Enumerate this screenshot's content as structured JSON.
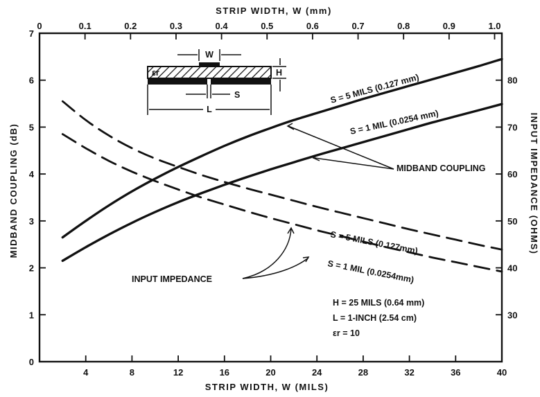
{
  "chart_data": {
    "type": "line",
    "x_bottom": {
      "label": "STRIP WIDTH, W (MILS)",
      "range": [
        0,
        40
      ],
      "ticks": [
        4,
        8,
        12,
        16,
        20,
        24,
        28,
        32,
        36,
        40
      ],
      "tick_labels": [
        "4",
        "8",
        "12",
        "16",
        "20",
        "24",
        "28",
        "32",
        "36",
        "40"
      ]
    },
    "x_top": {
      "label": "STRIP WIDTH, W (mm)",
      "range": [
        0,
        1.016
      ],
      "ticks": [
        0,
        0.1,
        0.2,
        0.3,
        0.4,
        0.5,
        0.6,
        0.7,
        0.8,
        0.9,
        1.0
      ],
      "tick_labels": [
        "0",
        "0.1",
        "0.2",
        "0.3",
        "0.4",
        "0.5",
        "0.6",
        "0.7",
        "0.8",
        "0.9",
        "1.0"
      ]
    },
    "y_left": {
      "label": "MIDBAND COUPLING (dB)",
      "range": [
        0,
        7
      ],
      "ticks": [
        0,
        1,
        2,
        3,
        4,
        5,
        6,
        7
      ],
      "tick_labels": [
        "0",
        "1",
        "2",
        "3",
        "4",
        "5",
        "6",
        "7"
      ]
    },
    "y_right": {
      "label": "INPUT IMPEDANCE (OHMS)",
      "range": [
        20,
        90
      ],
      "ticks": [
        30,
        40,
        50,
        60,
        70,
        80
      ],
      "tick_labels": [
        "30",
        "40",
        "50",
        "60",
        "70",
        "80"
      ]
    },
    "series": [
      {
        "name": "S = 5 MILS (0.127 mm)",
        "quantity": "midband coupling",
        "axis": "left",
        "style": "solid",
        "x": [
          2,
          4,
          6,
          8,
          10,
          12,
          14,
          16,
          18,
          20,
          22,
          24,
          26,
          28,
          30,
          32,
          34,
          36,
          38,
          40
        ],
        "y": [
          2.65,
          3.0,
          3.33,
          3.63,
          3.9,
          4.15,
          4.38,
          4.6,
          4.8,
          4.98,
          5.15,
          5.3,
          5.45,
          5.6,
          5.74,
          5.88,
          6.02,
          6.16,
          6.3,
          6.45
        ]
      },
      {
        "name": "S = 1 MIL (0.0254 mm)",
        "quantity": "midband coupling",
        "axis": "left",
        "style": "solid",
        "x": [
          2,
          4,
          6,
          8,
          10,
          12,
          14,
          16,
          18,
          20,
          22,
          24,
          26,
          28,
          30,
          32,
          34,
          36,
          38,
          40
        ],
        "y": [
          2.15,
          2.44,
          2.71,
          2.96,
          3.19,
          3.4,
          3.59,
          3.77,
          3.94,
          4.1,
          4.25,
          4.4,
          4.54,
          4.68,
          4.82,
          4.96,
          5.1,
          5.23,
          5.36,
          5.49
        ]
      },
      {
        "name": "S = 5 MILS (0.127mm)",
        "quantity": "input impedance",
        "axis": "right",
        "style": "dashed",
        "x": [
          2,
          4,
          6,
          8,
          10,
          12,
          14,
          16,
          18,
          20,
          22,
          24,
          26,
          28,
          30,
          32,
          34,
          36,
          38,
          40
        ],
        "y": [
          75.5,
          71.5,
          68.2,
          65.5,
          63.3,
          61.5,
          59.8,
          58.3,
          56.9,
          55.6,
          54.3,
          53.0,
          51.8,
          50.6,
          49.4,
          48.2,
          47.1,
          46.0,
          44.9,
          43.9
        ]
      },
      {
        "name": "S = 1 MIL (0.0254mm)",
        "quantity": "input impedance",
        "axis": "right",
        "style": "dashed",
        "x": [
          2,
          4,
          6,
          8,
          10,
          12,
          14,
          16,
          18,
          20,
          22,
          24,
          26,
          28,
          30,
          32,
          34,
          36,
          38,
          40
        ],
        "y": [
          68.5,
          65.5,
          62.8,
          60.5,
          58.5,
          56.7,
          55.0,
          53.5,
          52.0,
          50.6,
          49.3,
          48.0,
          46.8,
          45.6,
          44.4,
          43.3,
          42.2,
          41.2,
          40.2,
          39.2
        ]
      }
    ],
    "curve_labels": {
      "coupling_s5": "S = 5 MILS (0.127 mm)",
      "coupling_s1": "S = 1 MIL (0.0254 mm)",
      "impedance_s5": "S = 5 MILS (0.127mm)",
      "impedance_s1": "S = 1 MIL (0.0254mm)"
    },
    "annotations": {
      "midband_coupling": "MIDBAND COUPLING",
      "input_impedance": "INPUT IMPEDANCE",
      "params": [
        "H = 25 MILS (0.64 mm)",
        "L = 1-INCH (2.54 cm)",
        "εr = 10"
      ]
    },
    "inset": {
      "w": "W",
      "h": "H",
      "s": "S",
      "l": "L",
      "er": "εr"
    },
    "grid": false,
    "legend": "none"
  }
}
